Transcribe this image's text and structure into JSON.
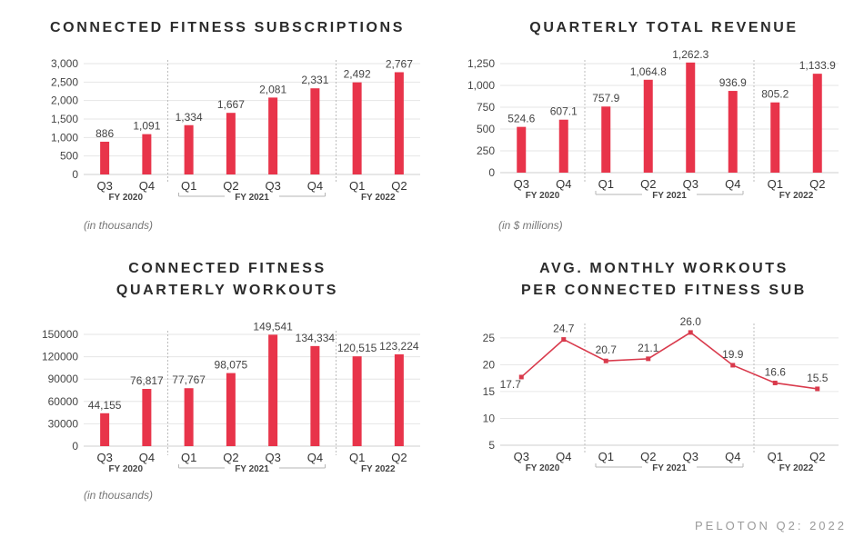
{
  "colors": {
    "bar": "#e8344a",
    "line": "#d93a4c",
    "grid": "#e6e6e6",
    "axis": "#999999",
    "text": "#444444"
  },
  "footer": "PELOTON Q2: 2022",
  "chart_data": [
    {
      "type": "bar",
      "title_lines": [
        "CONNECTED FITNESS SUBSCRIPTIONS"
      ],
      "categories": [
        "Q3",
        "Q4",
        "Q1",
        "Q2",
        "Q3",
        "Q4",
        "Q1",
        "Q2"
      ],
      "values": [
        886,
        1091,
        1334,
        1667,
        2081,
        2331,
        2492,
        2767
      ],
      "value_labels": [
        "886",
        "1,091",
        "1,334",
        "1,667",
        "2,081",
        "2,331",
        "2,492",
        "2,767"
      ],
      "ylim": [
        0,
        3000
      ],
      "yticks": [
        0,
        500,
        1000,
        1500,
        2000,
        2500,
        3000
      ],
      "ytick_labels": [
        "0",
        "500",
        "1,000",
        "1,500",
        "2,000",
        "2,500",
        "3,000"
      ],
      "groups": [
        {
          "label": "FY 2020",
          "start": 0,
          "end": 1
        },
        {
          "label": "FY 2021",
          "start": 2,
          "end": 5
        },
        {
          "label": "FY 2022",
          "start": 6,
          "end": 7
        }
      ],
      "note": "(in thousands)",
      "grid": true
    },
    {
      "type": "bar",
      "title_lines": [
        "QUARTERLY TOTAL REVENUE"
      ],
      "categories": [
        "Q3",
        "Q4",
        "Q1",
        "Q2",
        "Q3",
        "Q4",
        "Q1",
        "Q2"
      ],
      "values": [
        524.6,
        607.1,
        757.9,
        1064.8,
        1262.3,
        936.9,
        805.2,
        1133.9
      ],
      "value_labels": [
        "524.6",
        "607.1",
        "757.9",
        "1,064.8",
        "1,262.3",
        "936.9",
        "805.2",
        "1,133.9"
      ],
      "ylim": [
        0,
        1250
      ],
      "yticks": [
        0,
        250,
        500,
        750,
        1000,
        1250
      ],
      "ytick_labels": [
        "0",
        "250",
        "500",
        "750",
        "1,000",
        "1,250"
      ],
      "groups": [
        {
          "label": "FY 2020",
          "start": 0,
          "end": 1
        },
        {
          "label": "FY 2021",
          "start": 2,
          "end": 5
        },
        {
          "label": "FY 2022",
          "start": 6,
          "end": 7
        }
      ],
      "note": "(in $ millions)",
      "grid": true
    },
    {
      "type": "bar",
      "title_lines": [
        "CONNECTED FITNESS",
        "QUARTERLY WORKOUTS"
      ],
      "categories": [
        "Q3",
        "Q4",
        "Q1",
        "Q2",
        "Q3",
        "Q4",
        "Q1",
        "Q2"
      ],
      "values": [
        44155,
        76817,
        77767,
        98075,
        149541,
        134334,
        120515,
        123224
      ],
      "value_labels": [
        "44,155",
        "76,817",
        "77,767",
        "98,075",
        "149,541",
        "134,334",
        "120,515",
        "123,224"
      ],
      "ylim": [
        0,
        150000
      ],
      "yticks": [
        0,
        30000,
        60000,
        90000,
        120000,
        150000
      ],
      "ytick_labels": [
        "0",
        "30000",
        "60000",
        "90000",
        "120000",
        "150000"
      ],
      "groups": [
        {
          "label": "FY 2020",
          "start": 0,
          "end": 1
        },
        {
          "label": "FY 2021",
          "start": 2,
          "end": 5
        },
        {
          "label": "FY 2022",
          "start": 6,
          "end": 7
        }
      ],
      "note": "(in thousands)",
      "grid": true
    },
    {
      "type": "line",
      "title_lines": [
        "AVG. MONTHLY WORKOUTS",
        "PER CONNECTED FITNESS SUB"
      ],
      "categories": [
        "Q3",
        "Q4",
        "Q1",
        "Q2",
        "Q3",
        "Q4",
        "Q1",
        "Q2"
      ],
      "values": [
        17.7,
        24.7,
        20.7,
        21.1,
        26.0,
        19.9,
        16.6,
        15.5
      ],
      "value_labels": [
        "17.7",
        "24.7",
        "20.7",
        "21.1",
        "26.0",
        "19.9",
        "16.6",
        "15.5"
      ],
      "ylim": [
        5,
        27
      ],
      "yticks": [
        5,
        10,
        15,
        20,
        25
      ],
      "ytick_labels": [
        "5",
        "10",
        "15",
        "20",
        "25"
      ],
      "groups": [
        {
          "label": "FY 2020",
          "start": 0,
          "end": 1
        },
        {
          "label": "FY 2021",
          "start": 2,
          "end": 5
        },
        {
          "label": "FY 2022",
          "start": 6,
          "end": 7
        }
      ],
      "grid": true
    }
  ]
}
